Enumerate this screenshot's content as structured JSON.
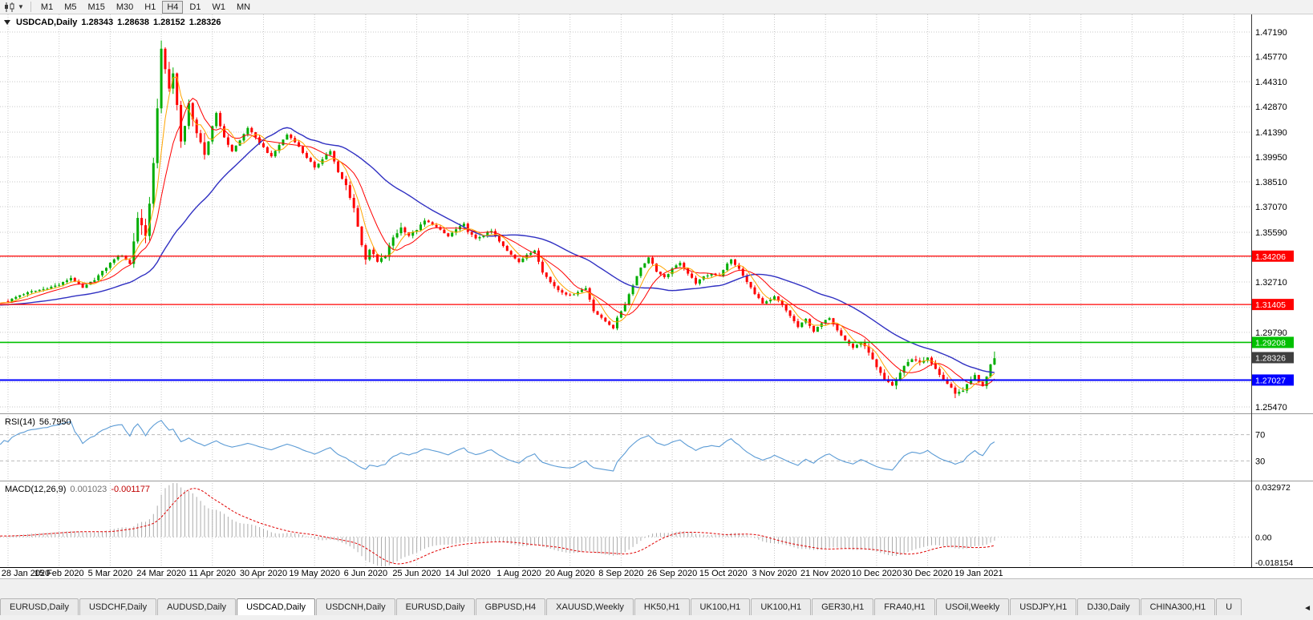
{
  "toolbar": {
    "timeframes": [
      {
        "label": "M1",
        "active": false
      },
      {
        "label": "M5",
        "active": false
      },
      {
        "label": "M15",
        "active": false
      },
      {
        "label": "M30",
        "active": false
      },
      {
        "label": "H1",
        "active": false
      },
      {
        "label": "H4",
        "active": true
      },
      {
        "label": "D1",
        "active": false
      },
      {
        "label": "W1",
        "active": false
      },
      {
        "label": "MN",
        "active": false
      }
    ]
  },
  "chart": {
    "title": "USDCAD,Daily",
    "ohlc": {
      "open": "1.28343",
      "high": "1.28638",
      "low": "1.28152",
      "close": "1.28326"
    },
    "price_axis_labels": [
      "1.47190",
      "1.45770",
      "1.44310",
      "1.42870",
      "1.41390",
      "1.39950",
      "1.38510",
      "1.37070",
      "1.35590",
      "1.32710",
      "1.29790",
      "1.25470"
    ],
    "levels": [
      {
        "label": "1.34206",
        "price": 1.34206,
        "color": "#FF0000",
        "kind": "resistance"
      },
      {
        "label": "1.31405",
        "price": 1.31405,
        "color": "#FF0000",
        "kind": "resistance"
      },
      {
        "label": "1.29208",
        "price": 1.29208,
        "color": "#00C000",
        "kind": "support"
      },
      {
        "label": "1.27027",
        "price": 1.27027,
        "color": "#0000FF",
        "kind": "support"
      }
    ],
    "current_price": {
      "label": "1.28326",
      "price": 1.28326,
      "badge_color": "#3f3f3f"
    },
    "colors": {
      "bull": "#00AD00",
      "bear": "#FF0000",
      "ma_fast": "#FFA500",
      "ma_mid": "#FF0000",
      "ma_slow": "#3030C2",
      "grid": "#c9c9c9",
      "axis_line": "#3a3a3a"
    }
  },
  "date_axis": {
    "labels": [
      "28 Jan 2020",
      "15 Feb 2020",
      "5 Mar 2020",
      "24 Mar 2020",
      "11 Apr 2020",
      "30 Apr 2020",
      "19 May 2020",
      "6 Jun 2020",
      "25 Jun 2020",
      "14 Jul 2020",
      "1 Aug 2020",
      "20 Aug 2020",
      "8 Sep 2020",
      "26 Sep 2020",
      "15 Oct 2020",
      "3 Nov 2020",
      "21 Nov 2020",
      "10 Dec 2020",
      "30 Dec 2020",
      "19 Jan 2021"
    ]
  },
  "rsi": {
    "name": "RSI(14)",
    "value": "56.7950",
    "upper": "70",
    "lower": "30",
    "line_color": "#5b9bd5"
  },
  "macd": {
    "name": "MACD(12,26,9)",
    "main_value": "0.001023",
    "signal_value": "-0.001177",
    "axis_max": "0.032972",
    "axis_zero": "0.00",
    "axis_min": "-0.018154",
    "hist_color": "#ACACAC",
    "signal_color": "#E00000"
  },
  "tabs": [
    {
      "label": "EURUSD,Daily",
      "active": false
    },
    {
      "label": "USDCHF,Daily",
      "active": false
    },
    {
      "label": "AUDUSD,Daily",
      "active": false
    },
    {
      "label": "USDCAD,Daily",
      "active": true
    },
    {
      "label": "USDCNH,Daily",
      "active": false
    },
    {
      "label": "EURUSD,Daily",
      "active": false
    },
    {
      "label": "GBPUSD,H4",
      "active": false
    },
    {
      "label": "XAUUSD,Weekly",
      "active": false
    },
    {
      "label": "HK50,H1",
      "active": false
    },
    {
      "label": "UK100,H1",
      "active": false
    },
    {
      "label": "UK100,H1",
      "active": false
    },
    {
      "label": "GER30,H1",
      "active": false
    },
    {
      "label": "FRA40,H1",
      "active": false
    },
    {
      "label": "USOil,Weekly",
      "active": false
    },
    {
      "label": "USDJPY,H1",
      "active": false
    },
    {
      "label": "DJ30,Daily",
      "active": false
    },
    {
      "label": "CHINA300,H1",
      "active": false
    },
    {
      "label": "U",
      "active": false
    }
  ],
  "chart_data": {
    "type": "candlestick",
    "symbol": "USDCAD",
    "period": "Daily",
    "bar_count": 252,
    "last_bar_ohlc": {
      "open": 1.28343,
      "high": 1.28638,
      "low": 1.28152,
      "close": 1.28326
    },
    "price_range": [
      1.2547,
      1.4719
    ],
    "x_labels": [
      "28 Jan 2020",
      "15 Feb 2020",
      "5 Mar 2020",
      "24 Mar 2020",
      "11 Apr 2020",
      "30 Apr 2020",
      "19 May 2020",
      "6 Jun 2020",
      "25 Jun 2020",
      "14 Jul 2020",
      "1 Aug 2020",
      "20 Aug 2020",
      "8 Sep 2020",
      "26 Sep 2020",
      "15 Oct 2020",
      "3 Nov 2020",
      "21 Nov 2020",
      "10 Dec 2020",
      "30 Dec 2020",
      "19 Jan 2021"
    ],
    "extremes": {
      "high": 1.4669,
      "high_near": "19 Mar 2020",
      "low": 1.2598,
      "low_near": "mid Jan 2021"
    },
    "horizontal_lines": [
      1.34206,
      1.31405,
      1.29208,
      1.27027
    ],
    "indicators": [
      {
        "name": "MA",
        "type": "fast",
        "color": "#FFA500"
      },
      {
        "name": "MA",
        "type": "medium",
        "color": "#FF0000"
      },
      {
        "name": "MA",
        "type": "slow",
        "color": "#3030C2"
      },
      {
        "name": "RSI",
        "period": 14,
        "current": 56.795,
        "levels": [
          30,
          70
        ]
      },
      {
        "name": "MACD",
        "params": [
          12,
          26,
          9
        ],
        "main": 0.001023,
        "signal": -0.001177,
        "scale_max": 0.032972,
        "scale_min": -0.018154
      }
    ],
    "close_anchors": [
      [
        0,
        1.316
      ],
      [
        3,
        1.3195
      ],
      [
        6,
        1.3215
      ],
      [
        9,
        1.323
      ],
      [
        13,
        1.3255
      ],
      [
        16,
        1.3295
      ],
      [
        19,
        1.3235
      ],
      [
        22,
        1.3285
      ],
      [
        25,
        1.3355
      ],
      [
        27,
        1.3405
      ],
      [
        29,
        1.3425
      ],
      [
        31,
        1.3375
      ],
      [
        33,
        1.3645
      ],
      [
        35,
        1.355
      ],
      [
        36,
        1.372
      ],
      [
        37,
        1.3945
      ],
      [
        38,
        1.4285
      ],
      [
        39,
        1.463
      ],
      [
        40,
        1.4495
      ],
      [
        41,
        1.438
      ],
      [
        42,
        1.4475
      ],
      [
        43,
        1.431
      ],
      [
        44,
        1.4085
      ],
      [
        45,
        1.4165
      ],
      [
        46,
        1.43
      ],
      [
        47,
        1.4225
      ],
      [
        48,
        1.4135
      ],
      [
        50,
        1.3995
      ],
      [
        52,
        1.4175
      ],
      [
        53,
        1.425
      ],
      [
        55,
        1.4105
      ],
      [
        57,
        1.403
      ],
      [
        59,
        1.409
      ],
      [
        61,
        1.4165
      ],
      [
        63,
        1.4105
      ],
      [
        65,
        1.405
      ],
      [
        67,
        1.3995
      ],
      [
        69,
        1.4065
      ],
      [
        71,
        1.4125
      ],
      [
        73,
        1.4085
      ],
      [
        75,
        1.402
      ],
      [
        77,
        1.3965
      ],
      [
        78,
        1.393
      ],
      [
        80,
        1.3985
      ],
      [
        82,
        1.403
      ],
      [
        84,
        1.3905
      ],
      [
        86,
        1.383
      ],
      [
        88,
        1.37
      ],
      [
        89,
        1.359
      ],
      [
        90,
        1.349
      ],
      [
        91,
        1.3405
      ],
      [
        92,
        1.345
      ],
      [
        93,
        1.343
      ],
      [
        94,
        1.3385
      ],
      [
        96,
        1.342
      ],
      [
        98,
        1.353
      ],
      [
        100,
        1.3585
      ],
      [
        102,
        1.354
      ],
      [
        104,
        1.3575
      ],
      [
        106,
        1.3625
      ],
      [
        108,
        1.3605
      ],
      [
        110,
        1.357
      ],
      [
        112,
        1.3535
      ],
      [
        114,
        1.3575
      ],
      [
        116,
        1.3605
      ],
      [
        117,
        1.3565
      ],
      [
        119,
        1.352
      ],
      [
        121,
        1.3545
      ],
      [
        123,
        1.3565
      ],
      [
        125,
        1.3505
      ],
      [
        127,
        1.345
      ],
      [
        129,
        1.341
      ],
      [
        130,
        1.339
      ],
      [
        132,
        1.3425
      ],
      [
        134,
        1.3455
      ],
      [
        136,
        1.333
      ],
      [
        138,
        1.327
      ],
      [
        140,
        1.3225
      ],
      [
        143,
        1.319
      ],
      [
        145,
        1.3215
      ],
      [
        147,
        1.3235
      ],
      [
        149,
        1.3105
      ],
      [
        151,
        1.306
      ],
      [
        153,
        1.3025
      ],
      [
        154,
        1.3005
      ],
      [
        155,
        1.306
      ],
      [
        157,
        1.3145
      ],
      [
        159,
        1.3255
      ],
      [
        161,
        1.3355
      ],
      [
        163,
        1.341
      ],
      [
        164,
        1.338
      ],
      [
        165,
        1.333
      ],
      [
        167,
        1.3295
      ],
      [
        169,
        1.3345
      ],
      [
        171,
        1.3385
      ],
      [
        173,
        1.332
      ],
      [
        175,
        1.3265
      ],
      [
        177,
        1.33
      ],
      [
        179,
        1.332
      ],
      [
        181,
        1.331
      ],
      [
        183,
        1.3375
      ],
      [
        184,
        1.34
      ],
      [
        186,
        1.3345
      ],
      [
        188,
        1.327
      ],
      [
        190,
        1.3205
      ],
      [
        192,
        1.3145
      ],
      [
        194,
        1.3165
      ],
      [
        195,
        1.3185
      ],
      [
        197,
        1.3135
      ],
      [
        199,
        1.3075
      ],
      [
        201,
        1.301
      ],
      [
        203,
        1.3055
      ],
      [
        205,
        1.2985
      ],
      [
        207,
        1.303
      ],
      [
        209,
        1.3065
      ],
      [
        211,
        1.2995
      ],
      [
        213,
        1.2935
      ],
      [
        215,
        1.289
      ],
      [
        217,
        1.2925
      ],
      [
        219,
        1.2865
      ],
      [
        221,
        1.2775
      ],
      [
        223,
        1.2705
      ],
      [
        225,
        1.267
      ],
      [
        226,
        1.2705
      ],
      [
        228,
        1.2785
      ],
      [
        230,
        1.2825
      ],
      [
        232,
        1.2805
      ],
      [
        234,
        1.283
      ],
      [
        236,
        1.2765
      ],
      [
        238,
        1.2705
      ],
      [
        240,
        1.2655
      ],
      [
        241,
        1.262
      ],
      [
        243,
        1.2645
      ],
      [
        245,
        1.2705
      ],
      [
        246,
        1.2735
      ],
      [
        247,
        1.269
      ],
      [
        248,
        1.267
      ],
      [
        249,
        1.2725
      ],
      [
        250,
        1.2795
      ],
      [
        251,
        1.2833
      ]
    ]
  }
}
